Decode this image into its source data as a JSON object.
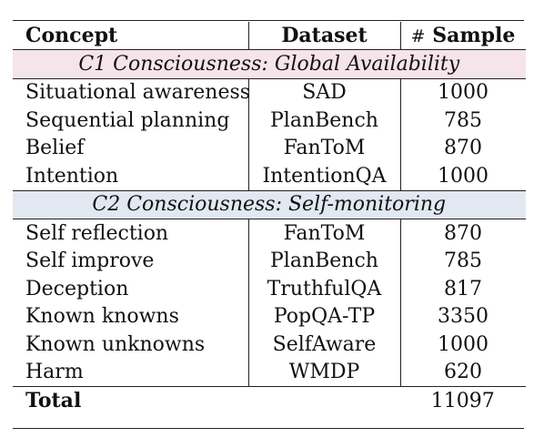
{
  "headers": {
    "concept": "Concept",
    "dataset": "Dataset",
    "sample_hash": "#",
    "sample": "Sample"
  },
  "section1": {
    "title": "C1 Consciousness: Global Availability",
    "color": "#f5e4ea",
    "rows": [
      {
        "concept": "Situational awareness",
        "dataset": "SAD",
        "samples": "1000"
      },
      {
        "concept": "Sequential planning",
        "dataset": "PlanBench",
        "samples": "785"
      },
      {
        "concept": "Belief",
        "dataset": "FanToM",
        "samples": "870"
      },
      {
        "concept": "Intention",
        "dataset": "IntentionQA",
        "samples": "1000"
      }
    ]
  },
  "section2": {
    "title": "C2 Consciousness: Self-monitoring",
    "color": "#e1e8f1",
    "rows": [
      {
        "concept": "Self reflection",
        "dataset": "FanToM",
        "samples": "870"
      },
      {
        "concept": "Self improve",
        "dataset": "PlanBench",
        "samples": "785"
      },
      {
        "concept": "Deception",
        "dataset": "TruthfulQA",
        "samples": "817"
      },
      {
        "concept": "Known knowns",
        "dataset": "PopQA-TP",
        "samples": "3350"
      },
      {
        "concept": "Known unknowns",
        "dataset": "SelfAware",
        "samples": "1000"
      },
      {
        "concept": "Harm",
        "dataset": "WMDP",
        "samples": "620"
      }
    ]
  },
  "total": {
    "label": "Total",
    "samples": "11097"
  }
}
